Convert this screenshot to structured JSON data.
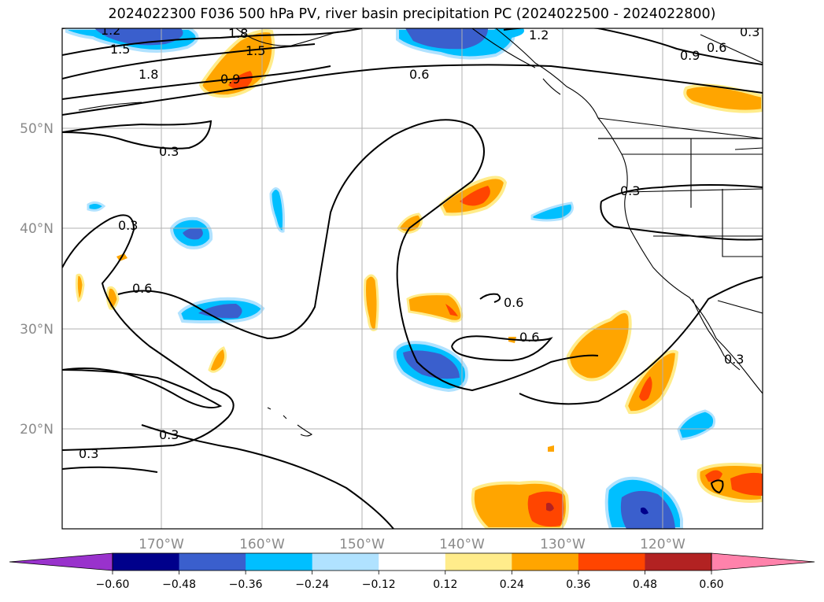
{
  "title": "2024022300 F036 500 hPa PV, river basin precipitation PC (2024022500 - 2024022800)",
  "lat_ticks": [
    "50°N",
    "40°N",
    "30°N",
    "20°N"
  ],
  "lon_ticks": [
    "170°W",
    "160°W",
    "150°W",
    "140°W",
    "130°W",
    "120°W"
  ],
  "pv_contour_labels": [
    "1.2",
    "1.5",
    "1.8",
    "1.8",
    "1.5",
    "0.9",
    "1.2",
    "0.6",
    "0.9",
    "0.6",
    "0.3",
    "0.3",
    "0.3",
    "0.6",
    "0.6",
    "0.6",
    "0.3",
    "0.3",
    "0.3",
    "0.3"
  ],
  "colorbar": {
    "ticks": [
      "−0.60",
      "−0.48",
      "−0.36",
      "−0.24",
      "−0.12",
      "0.12",
      "0.24",
      "0.36",
      "0.48",
      "0.60"
    ],
    "colors": [
      "#9932cc",
      "#00008b",
      "#3a5fcd",
      "#00bfff",
      "#b0e2ff",
      "#ffffff",
      "#ffec8b",
      "#ffa500",
      "#ff4500",
      "#b22222",
      "#ff82ab"
    ]
  },
  "colors": {
    "contour": "#000000",
    "grid": "#b0b0b0",
    "tick_label": "#8a8a8a",
    "coast": "#000000"
  }
}
